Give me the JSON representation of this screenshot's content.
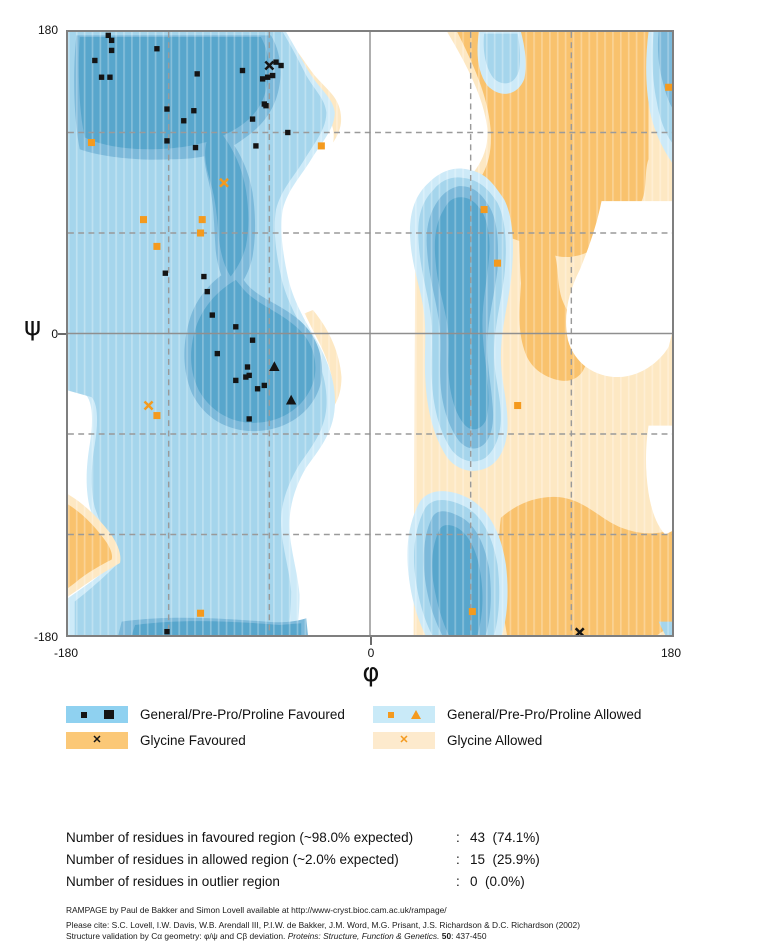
{
  "axes": {
    "x_symbol": "φ",
    "y_symbol": "ψ",
    "x_ticks": [
      "-180",
      "0",
      "180"
    ],
    "y_ticks": [
      "180",
      "0",
      "-180"
    ],
    "x_range": [
      -180,
      180
    ],
    "y_range": [
      -180,
      180
    ],
    "grid_step": 60
  },
  "legend": {
    "items": [
      {
        "label": "General/Pre-Pro/Proline Favoured",
        "swatch": "#8fd1f0",
        "markers": [
          "black-square",
          "black-triangle"
        ]
      },
      {
        "label": "Glycine Favoured",
        "swatch": "#fbc877",
        "markers": [
          "black-x"
        ]
      },
      {
        "label": "General/Pre-Pro/Proline Allowed",
        "swatch": "#c9eaf8",
        "markers": [
          "orange-square",
          "orange-triangle"
        ]
      },
      {
        "label": "Glycine Allowed",
        "swatch": "#fdeacd",
        "markers": [
          "orange-x"
        ]
      }
    ]
  },
  "stats": {
    "separator": ":",
    "rows": [
      {
        "label": "Number of residues in favoured region (~98.0% expected)",
        "value": "43  (74.1%)"
      },
      {
        "label": "Number of residues in allowed region (~2.0% expected)",
        "value": "15  (25.9%)"
      },
      {
        "label": "Number of residues in outlier region",
        "value": "0  (0.0%)"
      }
    ]
  },
  "footer": {
    "line1": "RAMPAGE by Paul de Bakker and Simon Lovell available at http://www-cryst.bioc.cam.ac.uk/rampage/",
    "line2": "Please cite: S.C. Lovell, I.W. Davis, W.B. Arendall III, P.I.W. de Bakker, J.M. Word, M.G. Prisant, J.S. Richardson & D.C. Richardson  (2002)",
    "line3_pre": "Structure validation by Cα geometry: φ/ψ and Cβ deviation. ",
    "line3_italic": "Proteins: Structure, Function & Genetics.",
    "line3_bold": " 50",
    "line3_post": ": 437-450"
  },
  "chart_data": {
    "type": "scatter",
    "subtype": "ramachandran",
    "xlabel": "φ",
    "ylabel": "ψ",
    "xlim": [
      -180,
      180
    ],
    "ylim": [
      -180,
      180
    ],
    "grid": "60-degree dashed, solid at 0",
    "palette": {
      "black": "#141414",
      "orange": "#f49a1e",
      "favoured_blue_core": "#58a6cc",
      "favoured_blue_mid": "#7cb9da",
      "allowed_blue": "#a5d5ec",
      "allowed_blue_light": "#cdeaf8",
      "glycine_favoured_orange": "#f9c26d",
      "glycine_allowed_orange": "#fde8c3"
    },
    "series": [
      {
        "name": "General/Pre-Pro/Proline Favoured",
        "marker": "square",
        "color": "black",
        "size": 3.2,
        "points": [
          [
            -156,
            179
          ],
          [
            -154,
            175
          ],
          [
            -154,
            169
          ],
          [
            -127,
            170
          ],
          [
            -164,
            163
          ],
          [
            -160,
            153
          ],
          [
            -155,
            153
          ],
          [
            -103,
            155
          ],
          [
            -121,
            134
          ],
          [
            -105,
            133
          ],
          [
            -111,
            127
          ],
          [
            -56,
            162
          ],
          [
            -53,
            160
          ],
          [
            -76,
            157
          ],
          [
            -58,
            154
          ],
          [
            -61,
            153
          ],
          [
            -64,
            152
          ],
          [
            -63,
            137
          ],
          [
            -62,
            136
          ],
          [
            -70,
            128
          ],
          [
            -49,
            120
          ],
          [
            -68,
            112
          ],
          [
            -121,
            115
          ],
          [
            -104,
            111
          ],
          [
            -122,
            36
          ],
          [
            -99,
            34
          ],
          [
            -97,
            25
          ],
          [
            -94,
            11
          ],
          [
            -80,
            4
          ],
          [
            -70,
            -4
          ],
          [
            -91,
            -12
          ],
          [
            -73,
            -20
          ],
          [
            -74,
            -26
          ],
          [
            -72,
            -25
          ],
          [
            -80,
            -28
          ],
          [
            -67,
            -33
          ],
          [
            -63,
            -31
          ],
          [
            -72,
            -51
          ],
          [
            -121,
            -178
          ]
        ]
      },
      {
        "name": "Proline Favoured",
        "marker": "triangle",
        "color": "black",
        "size": 6,
        "points": [
          [
            -57,
            -20
          ],
          [
            -47,
            -40
          ]
        ]
      },
      {
        "name": "Glycine Favoured",
        "marker": "x",
        "color": "black",
        "size": 5,
        "points": [
          [
            -60,
            160
          ],
          [
            125,
            -179
          ]
        ]
      },
      {
        "name": "General/Pre-Pro/Proline Allowed",
        "marker": "square",
        "color": "orange",
        "size": 4.2,
        "points": [
          [
            -166,
            114
          ],
          [
            -29,
            112
          ],
          [
            -135,
            68
          ],
          [
            -100,
            68
          ],
          [
            -101,
            60
          ],
          [
            -127,
            52
          ],
          [
            -127,
            -49
          ],
          [
            -101,
            -167
          ],
          [
            178,
            147
          ],
          [
            68,
            74
          ],
          [
            76,
            42
          ],
          [
            88,
            -43
          ],
          [
            61,
            -166
          ]
        ]
      },
      {
        "name": "Glycine Allowed",
        "marker": "x",
        "color": "orange",
        "size": 5,
        "points": [
          [
            -87,
            90
          ],
          [
            -132,
            -43
          ]
        ]
      }
    ],
    "counts": {
      "favoured": 43,
      "allowed": 15,
      "outlier": 0
    }
  }
}
